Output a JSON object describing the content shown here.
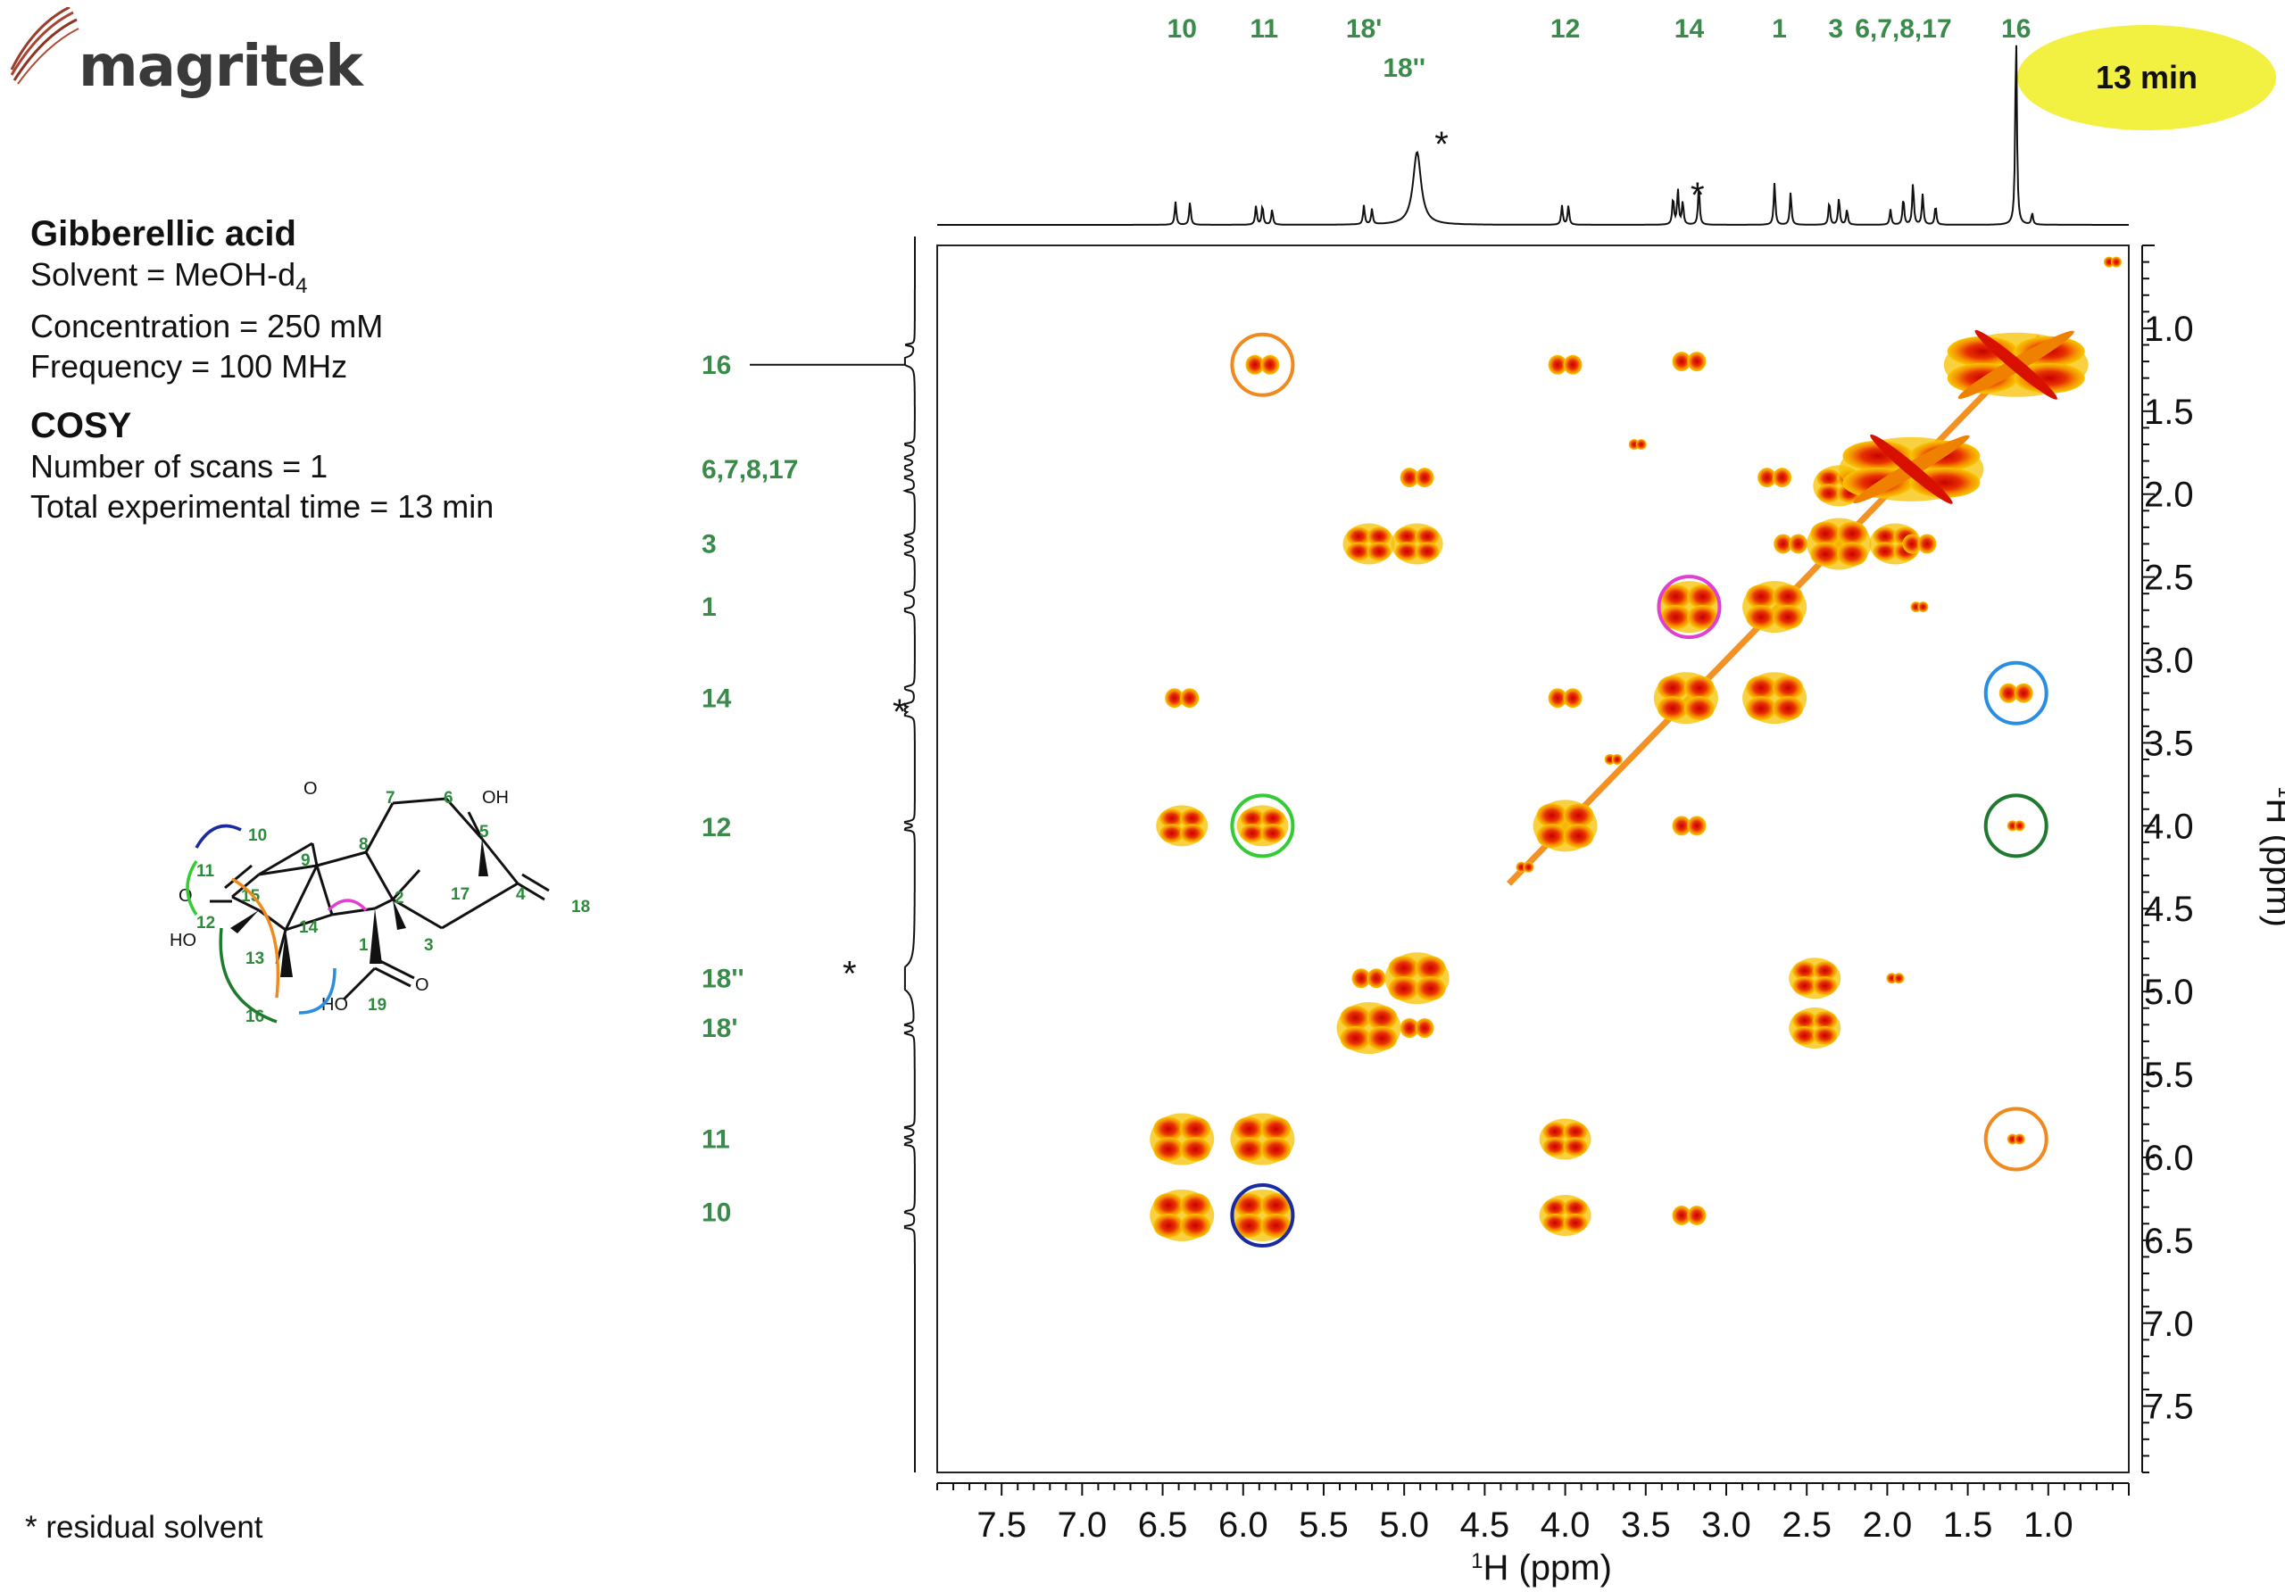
{
  "logo": {
    "text": "magritek"
  },
  "badge": {
    "text": "13 min"
  },
  "info": {
    "compound": "Gibberellic acid",
    "solvent_prefix": "Solvent = MeOH-d",
    "solvent_sub": "4",
    "concentration": "Concentration = 250 mM",
    "frequency": "Frequency = 100 MHz",
    "experiment": "COSY",
    "scans": "Number of scans = 1",
    "time": "Total experimental time = 13 min"
  },
  "footnote": "* residual solvent",
  "structure": {
    "labels": [
      "10",
      "9",
      "8",
      "7",
      "6",
      "5",
      "11",
      "15",
      "17",
      "2",
      "4",
      "18",
      "12",
      "14",
      "1",
      "13",
      "3",
      "16",
      "19"
    ],
    "atoms": [
      "O",
      "OH",
      "O",
      "HO",
      "HO",
      "O"
    ]
  },
  "colors": {
    "peak_label": "#3a8a4a",
    "contour_outer": "#f5c000",
    "contour_mid": "#f08000",
    "contour_core": "#d81000",
    "badge": "#f2f040"
  },
  "chart_data": {
    "type": "heatmap",
    "title": "COSY",
    "xlabel": "1H (ppm)",
    "ylabel": "1H (ppm)",
    "xlim": [
      7.9,
      0.5
    ],
    "ylim": [
      0.5,
      7.9
    ],
    "x_ticks": [
      "7.5",
      "7.0",
      "6.5",
      "6.0",
      "5.5",
      "5.0",
      "4.5",
      "4.0",
      "3.5",
      "3.0",
      "2.5",
      "2.0",
      "1.5",
      "1.0"
    ],
    "y_ticks": [
      "1.0",
      "1.5",
      "2.0",
      "2.5",
      "3.0",
      "3.5",
      "4.0",
      "4.5",
      "5.0",
      "5.5",
      "6.0",
      "6.5",
      "7.0",
      "7.5"
    ],
    "top_labels": [
      {
        "text": "10",
        "ppm": 6.38
      },
      {
        "text": "11",
        "ppm": 5.87
      },
      {
        "text": "18'",
        "ppm": 5.25
      },
      {
        "text": "18''",
        "ppm": 5.0
      },
      {
        "text": "12",
        "ppm": 4.0
      },
      {
        "text": "14",
        "ppm": 3.23
      },
      {
        "text": "1",
        "ppm": 2.67
      },
      {
        "text": "3",
        "ppm": 2.32
      },
      {
        "text": "6,7,8,17",
        "ppm": 1.9
      },
      {
        "text": "16",
        "ppm": 1.2
      }
    ],
    "side_labels": [
      {
        "text": "16",
        "ppm": 1.22
      },
      {
        "text": "6,7,8,17",
        "ppm": 1.85
      },
      {
        "text": "3",
        "ppm": 2.3
      },
      {
        "text": "1",
        "ppm": 2.68
      },
      {
        "text": "14",
        "ppm": 3.23
      },
      {
        "text": "12",
        "ppm": 4.01
      },
      {
        "text": "18''",
        "ppm": 4.92
      },
      {
        "text": "18'",
        "ppm": 5.22
      },
      {
        "text": "11",
        "ppm": 5.89
      },
      {
        "text": "10",
        "ppm": 6.33
      }
    ],
    "solvent_marks": [
      {
        "text": "*",
        "ppm": 4.9
      },
      {
        "text": "*",
        "ppm": 3.31
      }
    ],
    "spectrum_peaks": [
      {
        "ppm": 6.42,
        "h": 0.12
      },
      {
        "ppm": 6.33,
        "h": 0.12
      },
      {
        "ppm": 5.92,
        "h": 0.1
      },
      {
        "ppm": 5.88,
        "h": 0.1
      },
      {
        "ppm": 5.82,
        "h": 0.08
      },
      {
        "ppm": 5.25,
        "h": 0.1
      },
      {
        "ppm": 5.2,
        "h": 0.08
      },
      {
        "ppm": 4.92,
        "h": 0.38
      },
      {
        "ppm": 4.02,
        "h": 0.1
      },
      {
        "ppm": 3.98,
        "h": 0.1
      },
      {
        "ppm": 3.33,
        "h": 0.14
      },
      {
        "ppm": 3.3,
        "h": 0.18
      },
      {
        "ppm": 3.27,
        "h": 0.12
      },
      {
        "ppm": 3.17,
        "h": 0.2
      },
      {
        "ppm": 2.7,
        "h": 0.22
      },
      {
        "ppm": 2.6,
        "h": 0.17
      },
      {
        "ppm": 2.36,
        "h": 0.12
      },
      {
        "ppm": 2.3,
        "h": 0.14
      },
      {
        "ppm": 2.25,
        "h": 0.08
      },
      {
        "ppm": 1.98,
        "h": 0.08
      },
      {
        "ppm": 1.9,
        "h": 0.14
      },
      {
        "ppm": 1.84,
        "h": 0.22
      },
      {
        "ppm": 1.78,
        "h": 0.16
      },
      {
        "ppm": 1.7,
        "h": 0.1
      },
      {
        "ppm": 1.2,
        "h": 1.0
      },
      {
        "ppm": 1.1,
        "h": 0.06
      }
    ],
    "cross_peaks": [
      {
        "x": 5.88,
        "y": 1.22,
        "size": 1
      },
      {
        "x": 4.0,
        "y": 1.22,
        "size": 1
      },
      {
        "x": 3.23,
        "y": 1.2,
        "size": 1
      },
      {
        "x": 1.2,
        "y": 1.22,
        "size": 4
      },
      {
        "x": 4.92,
        "y": 1.9,
        "size": 1
      },
      {
        "x": 2.7,
        "y": 1.9,
        "size": 1
      },
      {
        "x": 2.3,
        "y": 1.95,
        "size": 2
      },
      {
        "x": 1.85,
        "y": 1.85,
        "size": 4
      },
      {
        "x": 3.55,
        "y": 1.7,
        "size": 0
      },
      {
        "x": 5.22,
        "y": 2.3,
        "size": 2
      },
      {
        "x": 4.92,
        "y": 2.3,
        "size": 2
      },
      {
        "x": 2.3,
        "y": 2.3,
        "size": 3
      },
      {
        "x": 1.95,
        "y": 2.3,
        "size": 2
      },
      {
        "x": 1.8,
        "y": 2.3,
        "size": 1
      },
      {
        "x": 2.6,
        "y": 2.3,
        "size": 1
      },
      {
        "x": 3.23,
        "y": 2.68,
        "size": 3
      },
      {
        "x": 2.7,
        "y": 2.68,
        "size": 3
      },
      {
        "x": 1.8,
        "y": 2.68,
        "size": 0
      },
      {
        "x": 6.38,
        "y": 3.23,
        "size": 1
      },
      {
        "x": 4.0,
        "y": 3.23,
        "size": 1
      },
      {
        "x": 3.25,
        "y": 3.23,
        "size": 3
      },
      {
        "x": 2.7,
        "y": 3.23,
        "size": 3
      },
      {
        "x": 1.2,
        "y": 3.2,
        "size": 1
      },
      {
        "x": 3.7,
        "y": 3.6,
        "size": 0
      },
      {
        "x": 6.38,
        "y": 4.0,
        "size": 2
      },
      {
        "x": 5.88,
        "y": 4.0,
        "size": 2
      },
      {
        "x": 4.0,
        "y": 4.0,
        "size": 3
      },
      {
        "x": 3.23,
        "y": 4.0,
        "size": 1
      },
      {
        "x": 1.2,
        "y": 4.0,
        "size": 0
      },
      {
        "x": 4.25,
        "y": 4.25,
        "size": 0
      },
      {
        "x": 5.22,
        "y": 4.92,
        "size": 1
      },
      {
        "x": 4.92,
        "y": 4.92,
        "size": 3
      },
      {
        "x": 2.45,
        "y": 4.92,
        "size": 2
      },
      {
        "x": 1.95,
        "y": 4.92,
        "size": 0
      },
      {
        "x": 5.22,
        "y": 5.22,
        "size": 3
      },
      {
        "x": 4.92,
        "y": 5.22,
        "size": 1
      },
      {
        "x": 2.45,
        "y": 5.22,
        "size": 2
      },
      {
        "x": 6.38,
        "y": 5.89,
        "size": 3
      },
      {
        "x": 5.88,
        "y": 5.89,
        "size": 3
      },
      {
        "x": 4.0,
        "y": 5.89,
        "size": 2
      },
      {
        "x": 1.2,
        "y": 5.89,
        "size": 0
      },
      {
        "x": 6.38,
        "y": 6.35,
        "size": 3
      },
      {
        "x": 5.88,
        "y": 6.35,
        "size": 3
      },
      {
        "x": 4.0,
        "y": 6.35,
        "size": 2
      },
      {
        "x": 3.23,
        "y": 6.35,
        "size": 1
      },
      {
        "x": 0.6,
        "y": 0.6,
        "size": 0
      }
    ],
    "highlight_circles": [
      {
        "x": 5.88,
        "y": 1.22,
        "color": "#f08a1e"
      },
      {
        "x": 3.23,
        "y": 2.68,
        "color": "#e040d0"
      },
      {
        "x": 1.2,
        "y": 3.2,
        "color": "#2a8ee0"
      },
      {
        "x": 5.88,
        "y": 4.0,
        "color": "#33cc33"
      },
      {
        "x": 1.2,
        "y": 4.0,
        "color": "#1f7a30"
      },
      {
        "x": 1.2,
        "y": 5.89,
        "color": "#f08a1e"
      },
      {
        "x": 5.88,
        "y": 6.35,
        "color": "#1a2aa0"
      }
    ]
  }
}
